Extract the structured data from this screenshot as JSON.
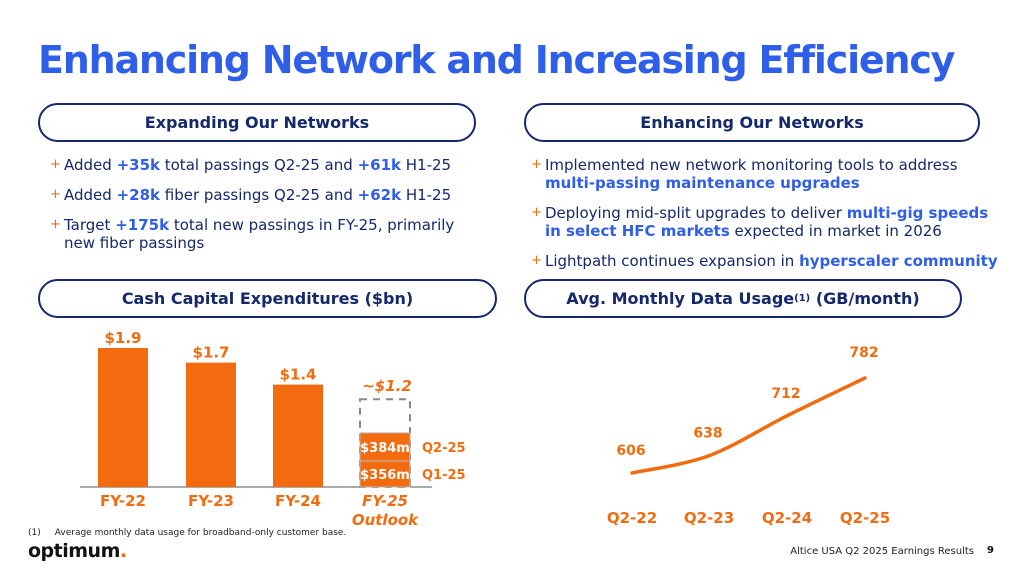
{
  "title": "Enhancing Network and Increasing Efficiency",
  "left_panel": {
    "header": "Expanding Our Networks",
    "bullets": [
      [
        {
          "t": "Added "
        },
        {
          "t": "+35k",
          "b": true
        },
        {
          "t": " total passings Q2-25 and "
        },
        {
          "t": "+61k",
          "b": true
        },
        {
          "t": " H1-25"
        }
      ],
      [
        {
          "t": "Added "
        },
        {
          "t": "+28k",
          "b": true
        },
        {
          "t": " fiber passings Q2-25 and "
        },
        {
          "t": "+62k",
          "b": true
        },
        {
          "t": " H1-25"
        }
      ],
      [
        {
          "t": "Target "
        },
        {
          "t": "+175k",
          "b": true
        },
        {
          "t": " total new passings in FY-25, primarily new fiber passings"
        }
      ]
    ]
  },
  "right_panel": {
    "header": "Enhancing Our Networks",
    "bullets": [
      [
        {
          "t": "Implemented new network monitoring tools to address "
        },
        {
          "t": "multi-passing maintenance upgrades",
          "b": true
        }
      ],
      [
        {
          "t": "Deploying mid-split upgrades to deliver "
        },
        {
          "t": "multi-gig speeds in select HFC markets",
          "b": true
        },
        {
          "t": " expected in market in 2026"
        }
      ],
      [
        {
          "t": "Lightpath continues expansion in "
        },
        {
          "t": "hyperscaler community",
          "b": true
        }
      ]
    ]
  },
  "bullet_marker": "+",
  "colors": {
    "accent_orange": "#f26b0f",
    "title_blue": "#2f5ee9",
    "navy": "#14286b"
  },
  "chart_data": [
    {
      "type": "bar",
      "title": "Cash Capital Expenditures ($bn)",
      "categories": [
        "FY-22",
        "FY-23",
        "FY-24",
        "FY-25 Outlook"
      ],
      "category_lines": [
        [
          "FY-22"
        ],
        [
          "FY-23"
        ],
        [
          "FY-24"
        ],
        [
          "FY-25",
          "Outlook"
        ]
      ],
      "values": [
        1.9,
        1.7,
        1.4,
        1.2
      ],
      "data_labels": [
        "$1.9",
        "$1.7",
        "$1.4",
        "~$1.2"
      ],
      "outlook_index": 3,
      "outlook_segments": [
        {
          "name": "Q1-25",
          "value": 0.356,
          "label": "$356m"
        },
        {
          "name": "Q2-25",
          "value": 0.384,
          "label": "$384m"
        }
      ],
      "ylim": [
        0,
        2.0
      ],
      "grid": false
    },
    {
      "type": "line",
      "title": "Avg. Monthly Data Usage",
      "title_sup": "(1)",
      "title_unit": "(GB/month)",
      "categories": [
        "Q2-22",
        "Q2-23",
        "Q2-24",
        "Q2-25"
      ],
      "values": [
        606,
        638,
        712,
        782
      ],
      "data_labels": [
        "606",
        "638",
        "712",
        "782"
      ],
      "grid": false
    }
  ],
  "footnote": {
    "marker": "(1)",
    "text": "Average monthly data usage for broadband-only customer base."
  },
  "logo": {
    "text": "optimum",
    "dot": "."
  },
  "footer": {
    "text": "Altice USA Q2 2025 Earnings Results",
    "page": "9"
  }
}
